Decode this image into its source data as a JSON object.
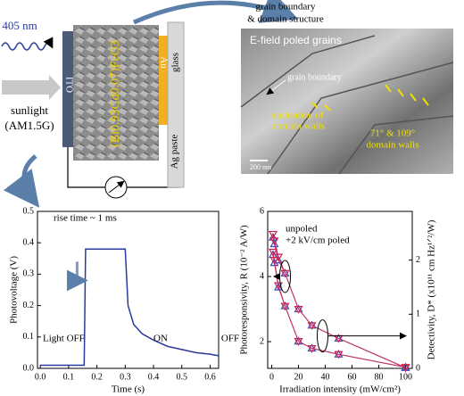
{
  "diagram": {
    "laser": "405 nm",
    "sunlight": "sunlight",
    "spectrum": "(AM1.5G)",
    "ito": "ITO",
    "film": "(Bi0.93Gd0.07)FeO3",
    "au": "Au",
    "glass": "glass",
    "ag": "Ag paste",
    "link_line1": "grain boundary",
    "link_line2": "& domain structure",
    "image_title": "E-field poled grains",
    "image_gb": "grain boundary",
    "image_nuc1": "nucleation of",
    "image_nuc2": "domain walls",
    "image_dw1": "71° & 109°",
    "image_dw2": "domain walls",
    "scale_bar": "200 nm"
  },
  "chart_data": [
    {
      "type": "line",
      "xlabel": "Time (s)",
      "ylabel": "Photovoltage (V)",
      "annotations": [
        "rise time ~ 1 ms",
        "Light OFF",
        "ON",
        "OFF"
      ],
      "x": [
        0,
        0.155,
        0.16,
        0.2,
        0.25,
        0.3,
        0.31,
        0.33,
        0.36,
        0.4,
        0.45,
        0.5,
        0.55,
        0.6,
        0.63
      ],
      "series": [
        {
          "color": "#2a3a9a",
          "values": [
            0.01,
            0.01,
            0.38,
            0.38,
            0.38,
            0.38,
            0.2,
            0.14,
            0.11,
            0.09,
            0.07,
            0.06,
            0.05,
            0.045,
            0.04
          ]
        }
      ],
      "xlim": [
        -0.01,
        0.63
      ],
      "xticks": [
        {
          "value": 0,
          "label": "0.0"
        },
        0.1,
        0.2,
        0.3,
        0.4,
        0.5,
        0.6
      ],
      "ylim": [
        0,
        0.5
      ],
      "yticks": [
        {
          "value": 0,
          "label": "0.0"
        },
        0.1,
        0.2,
        0.3,
        0.4,
        0.5
      ]
    },
    {
      "type": "line",
      "xlabel": "Irradiation intensity (mW/cm²)",
      "ylabel": "Photoresponsivity, R (10⁻² A/W)",
      "y2label": "Detectivity, D* (x10¹¹ cm Hz¹ᐟ²/W)",
      "x": [
        1,
        2,
        5,
        10,
        20,
        30,
        50,
        100
      ],
      "series": [
        {
          "name": "unpoled",
          "color": "#3a4ab8",
          "marker": "triangle",
          "values": [
            5.2,
            5.0,
            4.5,
            4.1,
            3.0,
            2.5,
            2.1,
            1.2
          ]
        },
        {
          "name": "+2 kV/cm poled",
          "color": "#d02050",
          "marker": "triangle-down",
          "values": [
            5.3,
            5.1,
            4.6,
            4.1,
            3.0,
            2.5,
            2.1,
            1.2
          ]
        },
        {
          "color": "#3a4ab8",
          "marker": "triangle",
          "axis": "y2",
          "values": [
            2.1,
            1.95,
            1.5,
            1.15,
            0.5,
            0.37,
            0.26,
            0.02
          ]
        },
        {
          "color": "#d02050",
          "marker": "triangle-down",
          "axis": "y2",
          "values": [
            2.15,
            2.0,
            1.53,
            1.15,
            0.5,
            0.37,
            0.26,
            0.02
          ]
        }
      ],
      "line_color": "#c03060",
      "xlim": [
        -3,
        105
      ],
      "xticks": [
        0,
        20,
        40,
        60,
        80,
        100
      ],
      "ylim": [
        1.18,
        6
      ],
      "yticks": [
        2,
        4,
        6
      ],
      "y2lim": [
        0,
        2.9
      ],
      "y2ticks": [
        0,
        1,
        2
      ]
    }
  ]
}
